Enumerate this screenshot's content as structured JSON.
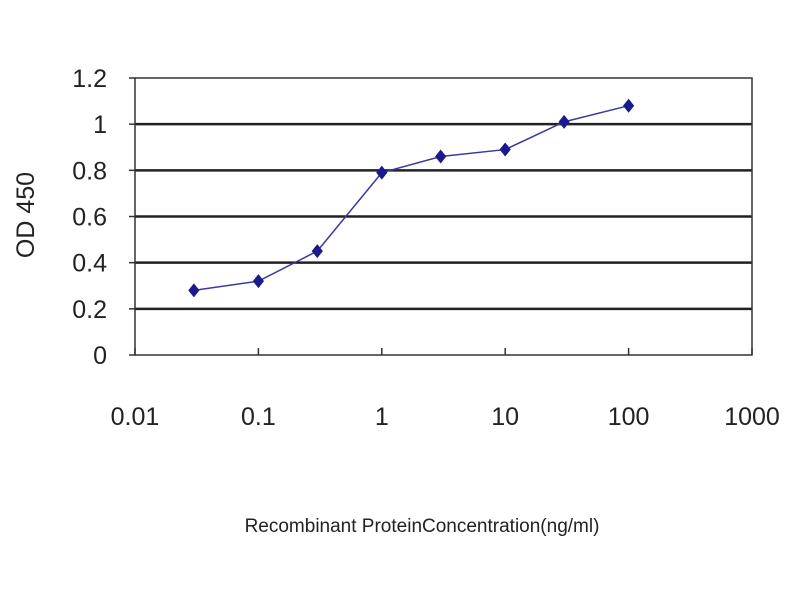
{
  "chart_data": {
    "type": "line",
    "title": "",
    "xlabel": "Recombinant ProteinConcentration(ng/ml)",
    "ylabel": "OD 450",
    "x_scale": "log",
    "xlim": [
      0.01,
      1000
    ],
    "ylim": [
      0,
      1.2
    ],
    "x_ticks": [
      "0.01",
      "0.1",
      "1",
      "10",
      "100",
      "1000"
    ],
    "y_ticks": [
      "0",
      "0.2",
      "0.4",
      "0.6",
      "0.8",
      "1",
      "1.2"
    ],
    "grid": "horizontal",
    "series": [
      {
        "x": [
          0.03,
          0.1,
          0.3,
          1,
          3,
          10,
          30,
          100
        ],
        "y": [
          0.28,
          0.32,
          0.45,
          0.79,
          0.86,
          0.89,
          1.01,
          1.08
        ],
        "color": "#1a1a8c",
        "marker": "diamond"
      }
    ]
  }
}
